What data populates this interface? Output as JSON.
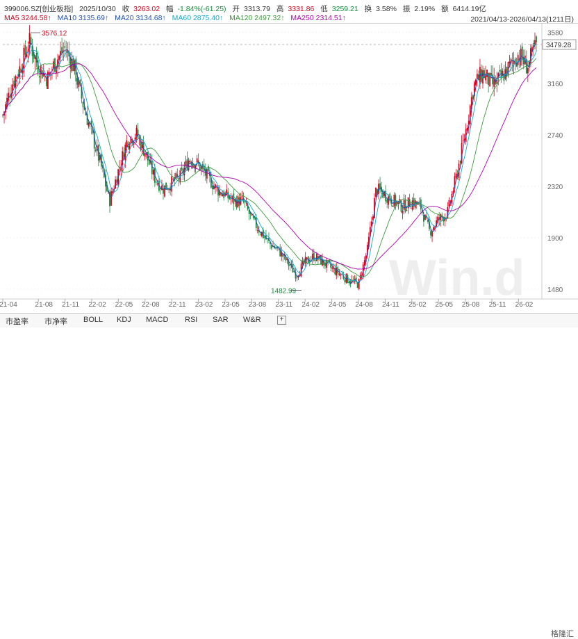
{
  "header": {
    "code": "399006.SZ[创业板指]",
    "date": "2025/10/30",
    "close_label": "收",
    "close": "3263.02",
    "change_label": "幅",
    "change": "-1.84%(-61.25)",
    "open_label": "开",
    "open": "3313.79",
    "high_label": "高",
    "high": "3331.86",
    "low_label": "低",
    "low": "3259.21",
    "turnover_label": "换",
    "turnover": "3.58%",
    "amplitude_label": "振",
    "amplitude": "2.19%",
    "amount_label": "额",
    "amount": "6414.19亿"
  },
  "ma": {
    "ma5": "MA5 3244.58↑",
    "ma10": "MA10 3135.69↑",
    "ma20": "MA20 3134.68↑",
    "ma60": "MA60 2875.40↑",
    "ma120": "MA120 2497.32↑",
    "ma250": "MA250 2314.51↑"
  },
  "date_range": "2021/04/13-2026/04/13(1211日)",
  "chart_data": {
    "type": "candlestick",
    "y_ticks": [
      "3580",
      "3160",
      "2740",
      "2320",
      "1900",
      "1480"
    ],
    "x_ticks": [
      "21-04",
      "21-08",
      "21-11",
      "22-02",
      "22-05",
      "22-08",
      "22-11",
      "23-02",
      "23-05",
      "23-08",
      "23-11",
      "24-02",
      "24-05",
      "24-08",
      "24-11",
      "25-02",
      "25-05",
      "25-08",
      "25-11",
      "26-02"
    ],
    "high_label": "3576.12",
    "low_label": "1482.99",
    "last_price_label": "3479.28",
    "ylim": [
      1400,
      3650
    ],
    "close_path": [
      [
        "21-04",
        2900
      ],
      [
        "21-05",
        3150
      ],
      [
        "21-06",
        3300
      ],
      [
        "21-07",
        3500
      ],
      [
        "21-08",
        3300
      ],
      [
        "21-09",
        3200
      ],
      [
        "21-10",
        3350
      ],
      [
        "21-11",
        3450
      ],
      [
        "21-12",
        3300
      ],
      [
        "22-01",
        3000
      ],
      [
        "22-02",
        2750
      ],
      [
        "22-03",
        2500
      ],
      [
        "22-04",
        2200
      ],
      [
        "22-05",
        2450
      ],
      [
        "22-06",
        2700
      ],
      [
        "22-07",
        2750
      ],
      [
        "22-08",
        2600
      ],
      [
        "22-09",
        2400
      ],
      [
        "22-10",
        2300
      ],
      [
        "22-11",
        2350
      ],
      [
        "22-12",
        2400
      ],
      [
        "23-01",
        2550
      ],
      [
        "23-02",
        2500
      ],
      [
        "23-03",
        2400
      ],
      [
        "23-04",
        2300
      ],
      [
        "23-05",
        2250
      ],
      [
        "23-06",
        2200
      ],
      [
        "23-07",
        2200
      ],
      [
        "23-08",
        2050
      ],
      [
        "23-09",
        1950
      ],
      [
        "23-10",
        1850
      ],
      [
        "23-11",
        1800
      ],
      [
        "23-12",
        1700
      ],
      [
        "24-01",
        1600
      ],
      [
        "24-02",
        1700
      ],
      [
        "24-03",
        1750
      ],
      [
        "24-04",
        1700
      ],
      [
        "24-05",
        1650
      ],
      [
        "24-06",
        1600
      ],
      [
        "24-07",
        1550
      ],
      [
        "24-08",
        1520
      ],
      [
        "24-09",
        1800
      ],
      [
        "24-10",
        2300
      ],
      [
        "24-11",
        2250
      ],
      [
        "24-12",
        2200
      ],
      [
        "25-01",
        2150
      ],
      [
        "25-02",
        2200
      ],
      [
        "25-03",
        2150
      ],
      [
        "25-04",
        1950
      ],
      [
        "25-05",
        2050
      ],
      [
        "25-06",
        2100
      ],
      [
        "25-07",
        2400
      ],
      [
        "25-08",
        2750
      ],
      [
        "25-09",
        3150
      ],
      [
        "25-10",
        3250
      ],
      [
        "25-11",
        3150
      ],
      [
        "25-12",
        3200
      ],
      [
        "26-01",
        3300
      ],
      [
        "26-02",
        3400
      ],
      [
        "26-03",
        3300
      ],
      [
        "26-04",
        3479
      ]
    ]
  },
  "tabs": [
    "市盈率",
    "市净率",
    "BOLL",
    "KDJ",
    "MACD",
    "RSI",
    "SAR",
    "W&R"
  ],
  "add_tab": "+",
  "watermark": "格隆汇",
  "colors": {
    "up": "#d9001b",
    "down": "#178a3c",
    "ma5": "#1f4fb8",
    "ma20": "#18a8c8",
    "ma120": "#3c9a3c",
    "ma250": "#b000b0"
  }
}
